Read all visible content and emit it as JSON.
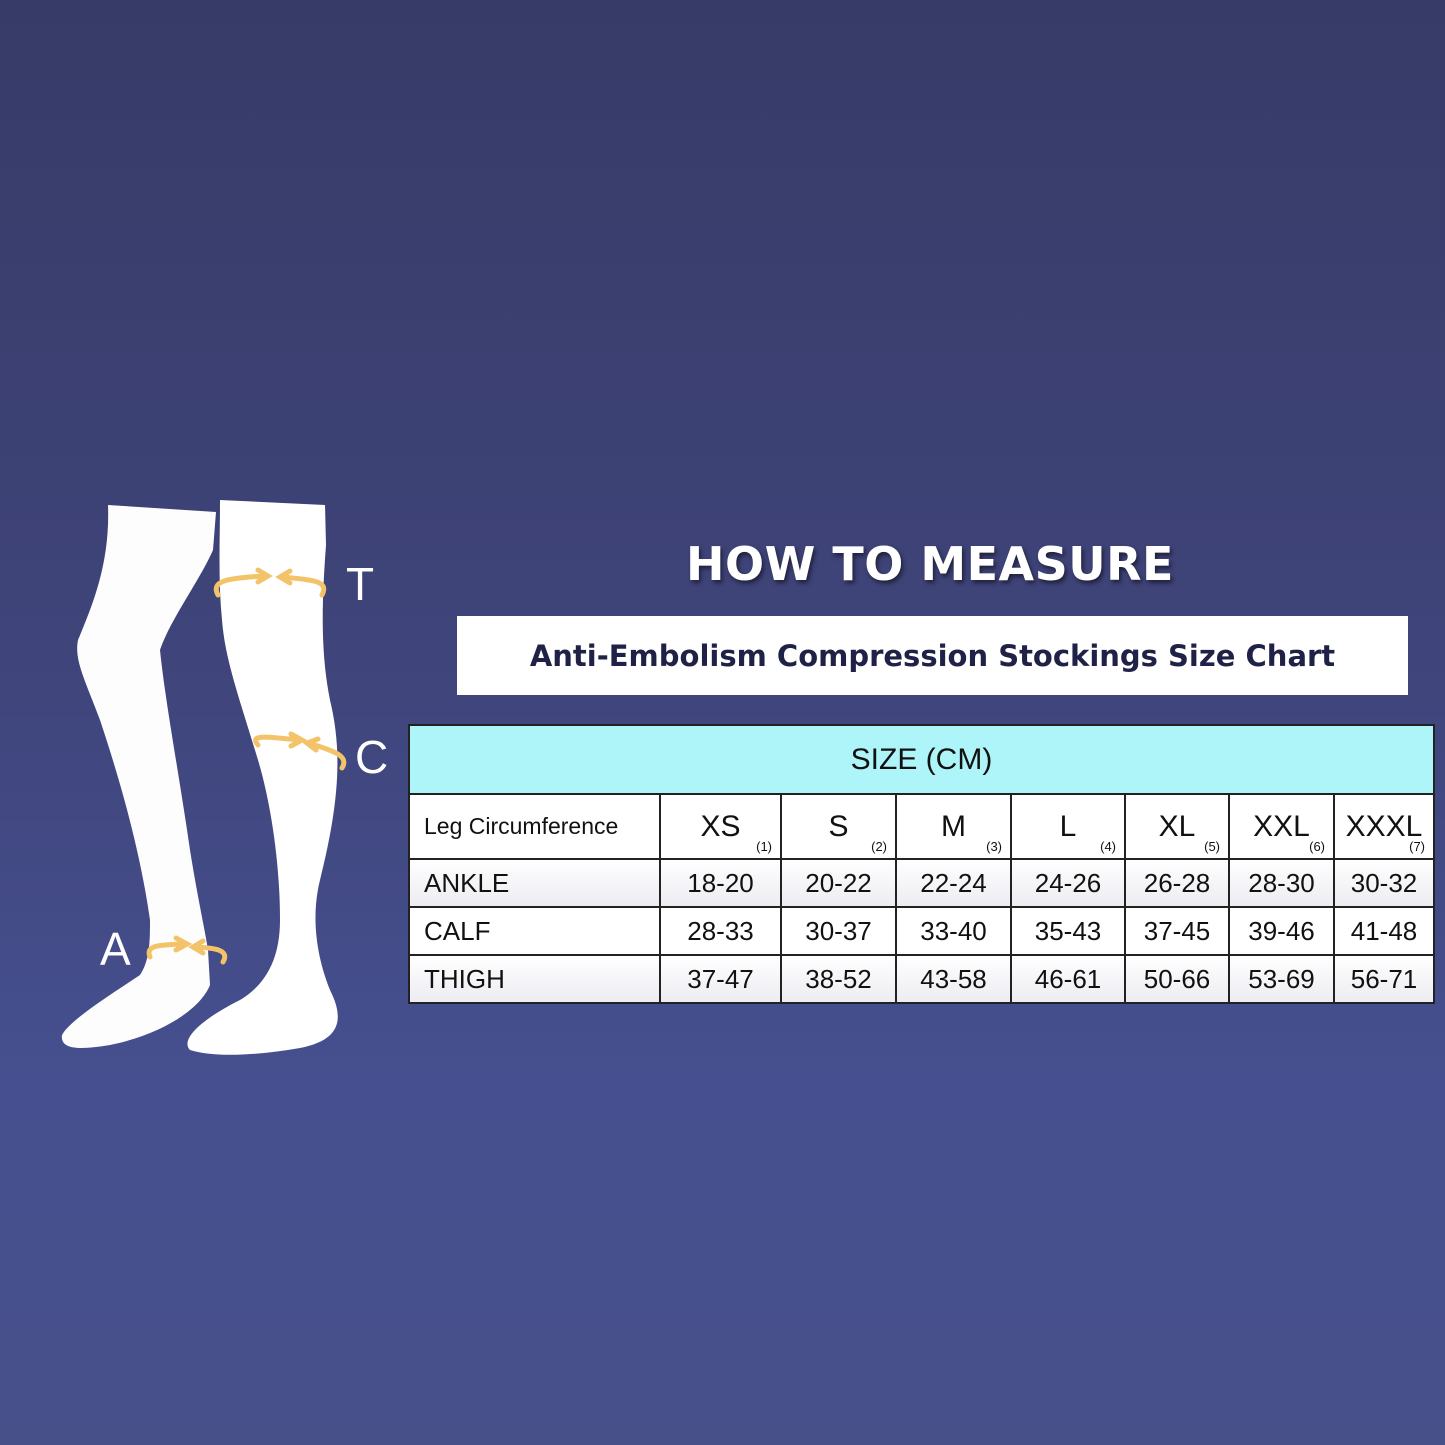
{
  "title": "HOW TO MEASURE",
  "subtitle": "Anti-Embolism Compression Stockings Size Chart",
  "measure_points": {
    "thigh": "T",
    "calf": "C",
    "ankle": "A"
  },
  "colors": {
    "background": "#3f447a",
    "table_header": "#aef5fa",
    "arrow": "#f3c36a"
  },
  "table": {
    "caption": "SIZE (CM)",
    "row_header": "Leg Circumference",
    "sizes": [
      {
        "label": "XS",
        "num": "(1)"
      },
      {
        "label": "S",
        "num": "(2)"
      },
      {
        "label": "M",
        "num": "(3)"
      },
      {
        "label": "L",
        "num": "(4)"
      },
      {
        "label": "XL",
        "num": "(5)"
      },
      {
        "label": "XXL",
        "num": "(6)"
      },
      {
        "label": "XXXL",
        "num": "(7)"
      }
    ],
    "rows": [
      {
        "label": "ANKLE",
        "values": [
          "18-20",
          "20-22",
          "22-24",
          "24-26",
          "26-28",
          "28-30",
          "30-32"
        ]
      },
      {
        "label": "CALF",
        "values": [
          "28-33",
          "30-37",
          "33-40",
          "35-43",
          "37-45",
          "39-46",
          "41-48"
        ]
      },
      {
        "label": "THIGH",
        "values": [
          "37-47",
          "38-52",
          "43-58",
          "46-61",
          "50-66",
          "53-69",
          "56-71"
        ]
      }
    ]
  }
}
